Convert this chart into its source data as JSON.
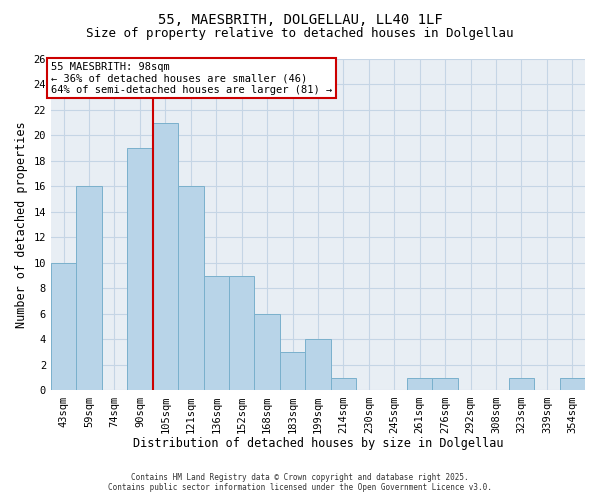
{
  "title": "55, MAESBRITH, DOLGELLAU, LL40 1LF",
  "subtitle": "Size of property relative to detached houses in Dolgellau",
  "xlabel": "Distribution of detached houses by size in Dolgellau",
  "ylabel": "Number of detached properties",
  "bar_labels": [
    "43sqm",
    "59sqm",
    "74sqm",
    "90sqm",
    "105sqm",
    "121sqm",
    "136sqm",
    "152sqm",
    "168sqm",
    "183sqm",
    "199sqm",
    "214sqm",
    "230sqm",
    "245sqm",
    "261sqm",
    "276sqm",
    "292sqm",
    "308sqm",
    "323sqm",
    "339sqm",
    "354sqm"
  ],
  "bar_values": [
    10,
    16,
    0,
    19,
    21,
    16,
    9,
    9,
    6,
    3,
    4,
    1,
    0,
    0,
    1,
    1,
    0,
    0,
    1,
    0,
    1
  ],
  "bar_color": "#b8d4e8",
  "bar_edge_color": "#7ab0cc",
  "vline_color": "#cc0000",
  "ylim": [
    0,
    26
  ],
  "yticks": [
    0,
    2,
    4,
    6,
    8,
    10,
    12,
    14,
    16,
    18,
    20,
    22,
    24,
    26
  ],
  "annotation_title": "55 MAESBRITH: 98sqm",
  "annotation_line1": "← 36% of detached houses are smaller (46)",
  "annotation_line2": "64% of semi-detached houses are larger (81) →",
  "annotation_box_color": "#cc0000",
  "footer_line1": "Contains HM Land Registry data © Crown copyright and database right 2025.",
  "footer_line2": "Contains public sector information licensed under the Open Government Licence v3.0.",
  "background_color": "#ffffff",
  "plot_bg_color": "#e8eef4",
  "grid_color": "#c5d5e5",
  "title_fontsize": 10,
  "subtitle_fontsize": 9,
  "axis_label_fontsize": 8.5,
  "tick_fontsize": 7.5,
  "annotation_fontsize": 7.5,
  "footer_fontsize": 5.5
}
